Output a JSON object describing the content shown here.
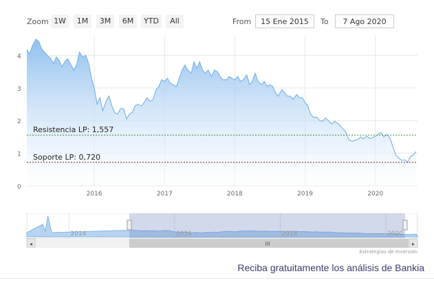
{
  "range_selector": {
    "zoom_label": "Zoom",
    "buttons": [
      "1W",
      "1M",
      "3M",
      "6M",
      "YTD",
      "All"
    ],
    "from_label": "From",
    "from_value": "15 Ene 2015",
    "to_label": "To",
    "to_value": "7 Ago 2020"
  },
  "chart_data": {
    "type": "area",
    "title": "",
    "xlabel": "",
    "ylabel": "",
    "xlim": [
      2015.04,
      2020.6
    ],
    "ylim": [
      0,
      4.6
    ],
    "x_ticks": [
      "2016",
      "2017",
      "2018",
      "2019",
      "2020"
    ],
    "y_ticks": [
      "0",
      "1",
      "2",
      "3",
      "4"
    ],
    "grid": true,
    "legend": "none",
    "colors": {
      "line": "#7cb5ec",
      "fill_top": "#7cb5ec",
      "fill_bottom": "#ffffff",
      "resistance": "#2e8b2e",
      "support": "#8b1a1a"
    },
    "series": [
      {
        "x": [
          2015.04,
          2015.08,
          2015.12,
          2015.17,
          2015.21,
          2015.25,
          2015.29,
          2015.33,
          2015.38,
          2015.42,
          2015.46,
          2015.5,
          2015.54,
          2015.58,
          2015.62,
          2015.67,
          2015.71,
          2015.75,
          2015.79,
          2015.83,
          2015.88,
          2015.92,
          2015.96,
          2016.0,
          2016.04,
          2016.08,
          2016.12,
          2016.17,
          2016.21,
          2016.25,
          2016.29,
          2016.33,
          2016.38,
          2016.42,
          2016.46,
          2016.5,
          2016.54,
          2016.58,
          2016.62,
          2016.67,
          2016.71,
          2016.75,
          2016.79,
          2016.83,
          2016.88,
          2016.92,
          2016.96,
          2017.0,
          2017.04,
          2017.08,
          2017.12,
          2017.17,
          2017.21,
          2017.25,
          2017.29,
          2017.33,
          2017.38,
          2017.42,
          2017.46,
          2017.5,
          2017.54,
          2017.58,
          2017.62,
          2017.67,
          2017.71,
          2017.75,
          2017.79,
          2017.83,
          2017.88,
          2017.92,
          2017.96,
          2018.0,
          2018.04,
          2018.08,
          2018.12,
          2018.17,
          2018.21,
          2018.25,
          2018.29,
          2018.33,
          2018.38,
          2018.42,
          2018.46,
          2018.5,
          2018.54,
          2018.58,
          2018.62,
          2018.67,
          2018.71,
          2018.75,
          2018.79,
          2018.83,
          2018.88,
          2018.92,
          2018.96,
          2019.0,
          2019.04,
          2019.08,
          2019.12,
          2019.17,
          2019.21,
          2019.25,
          2019.29,
          2019.33,
          2019.38,
          2019.42,
          2019.46,
          2019.5,
          2019.54,
          2019.58,
          2019.62,
          2019.67,
          2019.71,
          2019.75,
          2019.79,
          2019.83,
          2019.88,
          2019.92,
          2019.96,
          2020.0,
          2020.04,
          2020.08,
          2020.12,
          2020.17,
          2020.21,
          2020.25,
          2020.29,
          2020.33,
          2020.38,
          2020.42,
          2020.46,
          2020.5,
          2020.54,
          2020.58
        ],
        "y": [
          4.18,
          4.05,
          4.3,
          4.5,
          4.42,
          4.2,
          4.1,
          4.0,
          3.9,
          3.75,
          3.95,
          3.85,
          3.65,
          3.8,
          3.9,
          3.7,
          3.55,
          3.72,
          4.1,
          3.95,
          4.0,
          3.75,
          3.3,
          3.0,
          2.5,
          2.7,
          2.3,
          2.6,
          2.75,
          2.45,
          2.25,
          2.2,
          2.38,
          2.35,
          2.05,
          2.2,
          2.25,
          2.45,
          2.5,
          2.45,
          2.55,
          2.7,
          2.6,
          2.62,
          2.95,
          3.05,
          3.25,
          3.2,
          3.3,
          3.15,
          3.1,
          3.05,
          3.3,
          3.55,
          3.7,
          3.55,
          3.45,
          3.8,
          3.6,
          3.8,
          3.55,
          3.45,
          3.55,
          3.35,
          3.55,
          3.5,
          3.35,
          3.25,
          3.25,
          3.35,
          3.3,
          3.25,
          3.35,
          3.2,
          3.25,
          3.4,
          3.1,
          3.2,
          3.45,
          3.2,
          3.1,
          3.2,
          3.05,
          3.1,
          3.05,
          2.85,
          2.75,
          2.95,
          2.85,
          2.75,
          2.75,
          2.65,
          2.8,
          2.7,
          2.7,
          2.55,
          2.45,
          2.2,
          2.1,
          2.1,
          2.0,
          1.98,
          2.08,
          2.0,
          1.9,
          1.98,
          1.92,
          1.85,
          1.75,
          1.65,
          1.42,
          1.36,
          1.4,
          1.42,
          1.5,
          1.44,
          1.52,
          1.45,
          1.48,
          1.52,
          1.58,
          1.64,
          1.5,
          1.58,
          1.45,
          1.2,
          0.95,
          0.85,
          0.78,
          0.8,
          0.72,
          0.9,
          0.95,
          1.05
        ]
      }
    ],
    "annotations": [
      {
        "label": "Resistencia LP: 1,557",
        "y": 1.557
      },
      {
        "label": "Soporte LP: 0,720",
        "y": 0.72
      }
    ]
  },
  "navigator": {
    "x_ticks": [
      "2014",
      "2016",
      "2018",
      "2020"
    ],
    "scroll_handle_label": "III",
    "left_arrow": "◂",
    "right_arrow": "▸"
  },
  "credits": "Estrategias de Inversión",
  "promo_text": "Reciba gratuitamente los análisis de Bankia"
}
